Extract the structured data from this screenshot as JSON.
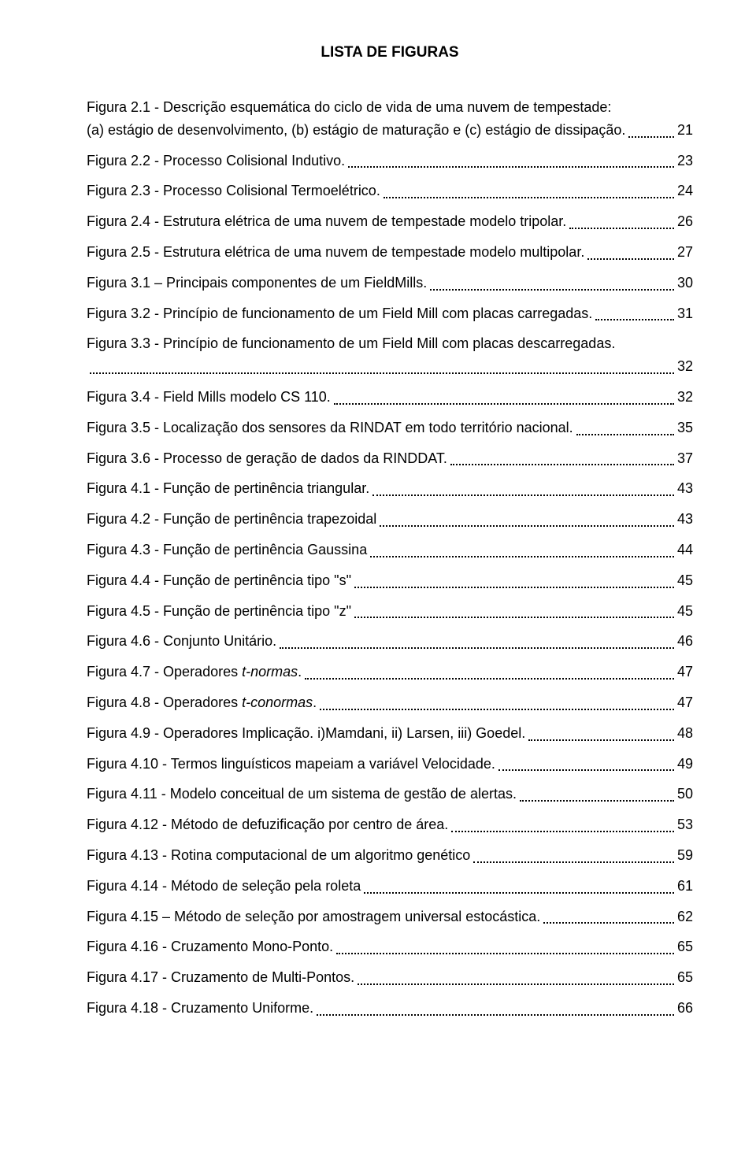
{
  "title": "LISTA DE FIGURAS",
  "font": {
    "family": "Arial",
    "title_size_pt": 19,
    "body_size_pt": 18,
    "color": "#000000",
    "bg": "#ffffff"
  },
  "entries": [
    {
      "pre": "Figura 2.1 - Descrição esquemática do ciclo de vida de uma nuvem de tempestade:",
      "last": "(a) estágio de desenvolvimento, (b) estágio de maturação e (c) estágio de dissipação.",
      "page": "21"
    },
    {
      "last": "Figura 2.2 - Processo Colisional Indutivo.",
      "page": "23"
    },
    {
      "last": "Figura 2.3 - Processo Colisional Termoelétrico.",
      "page": "24"
    },
    {
      "last": "Figura 2.4 - Estrutura elétrica de uma nuvem de tempestade modelo tripolar.",
      "page": "26"
    },
    {
      "last": "Figura 2.5 - Estrutura elétrica de uma nuvem de tempestade modelo multipolar.",
      "page": "27"
    },
    {
      "last": "Figura 3.1 – Principais componentes de um FieldMills.",
      "page": "30"
    },
    {
      "last": "Figura 3.2 - Princípio de funcionamento de um Field Mill com placas carregadas.",
      "page": "31"
    },
    {
      "pre": "Figura 3.3 - Princípio de funcionamento de um Field Mill com placas descarregadas.",
      "last": "",
      "page": "32"
    },
    {
      "last": "Figura 3.4 - Field Mills modelo CS 110.",
      "page": "32"
    },
    {
      "last": "Figura 3.5 - Localização dos sensores da RINDAT em todo território nacional.",
      "page": "35"
    },
    {
      "last": "Figura 3.6 - Processo de geração de dados da RINDDAT.",
      "page": "37"
    },
    {
      "last": "Figura 4.1 - Função de pertinência triangular.",
      "page": "43"
    },
    {
      "last": "Figura 4.2 - Função de pertinência trapezoidal",
      "page": "43"
    },
    {
      "last": "Figura 4.3 - Função de pertinência Gaussina",
      "page": "44"
    },
    {
      "last": "Figura 4.4 - Função de pertinência tipo \"s\"",
      "page": "45"
    },
    {
      "last": "Figura 4.5 - Função de pertinência tipo \"z\"",
      "page": "45"
    },
    {
      "last": "Figura 4.6 - Conjunto Unitário.",
      "page": "46"
    },
    {
      "last_html": "Figura 4.7 - Operadores <span class=\"italic\">t-normas</span>.",
      "page": "47"
    },
    {
      "last_html": "Figura 4.8 - Operadores <span class=\"italic\">t-conormas</span>.",
      "page": "47"
    },
    {
      "last": "Figura 4.9 - Operadores Implicação. i)Mamdani, ii) Larsen, iii) Goedel.",
      "page": "48"
    },
    {
      "last": "Figura 4.10 - Termos linguísticos mapeiam a variável Velocidade.",
      "page": "49"
    },
    {
      "last": "Figura 4.11 - Modelo conceitual de um sistema de gestão de alertas.",
      "page": "50"
    },
    {
      "last": "Figura 4.12 - Método de defuzificação por centro de área.",
      "page": "53"
    },
    {
      "last": "Figura 4.13 - Rotina computacional de um algoritmo genético",
      "page": "59"
    },
    {
      "last": "Figura 4.14 - Método de seleção pela roleta",
      "page": "61"
    },
    {
      "last": "Figura 4.15 – Método de seleção por amostragem universal estocástica.",
      "page": "62"
    },
    {
      "last": "Figura 4.16 - Cruzamento Mono-Ponto.",
      "page": "65"
    },
    {
      "last": "Figura 4.17 - Cruzamento de Multi-Pontos.",
      "page": "65"
    },
    {
      "last": "Figura 4.18 - Cruzamento Uniforme.",
      "page": "66"
    }
  ]
}
